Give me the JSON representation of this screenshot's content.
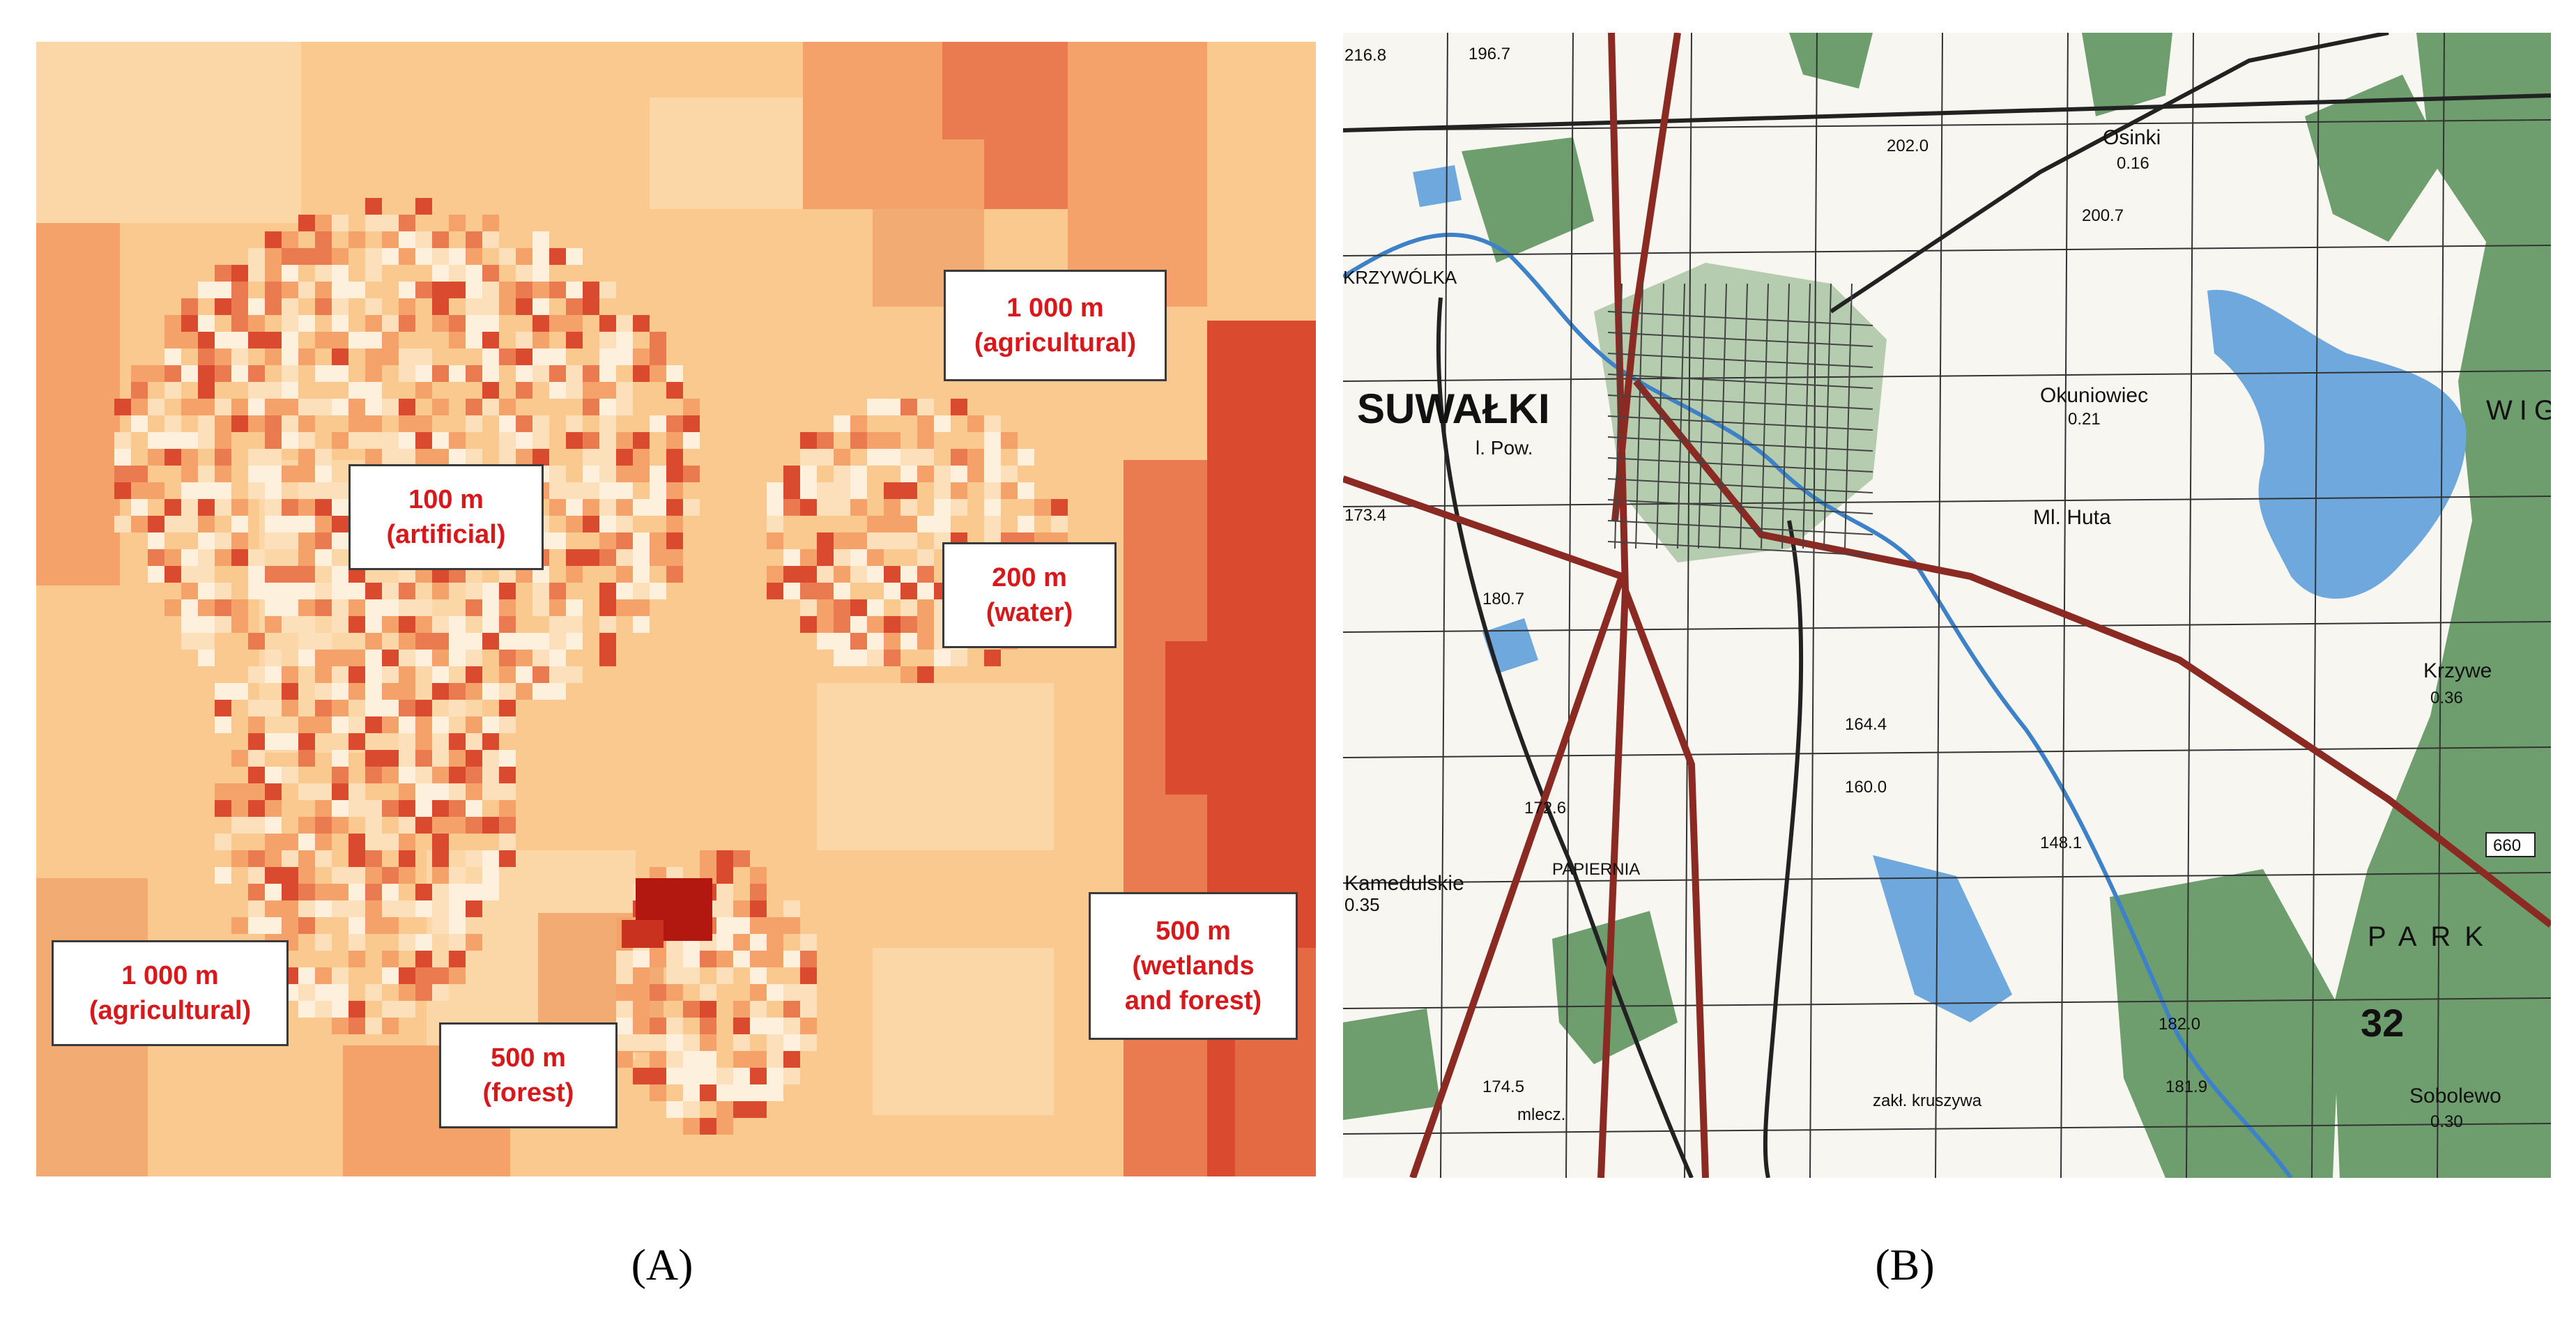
{
  "panel_a": {
    "caption": "(A)",
    "colors": {
      "base": "#f9c98f",
      "light": "#fbe0bb",
      "pale": "#fdf0dc",
      "medium": "#f4a26a",
      "strong": "#ea7a4f",
      "deep": "#d94a2f",
      "darkest": "#b2180f"
    },
    "labels": [
      {
        "name": "label-agricultural-ne",
        "distance": "1 000 m",
        "class": "(agricultural)"
      },
      {
        "name": "label-artificial",
        "distance": "100 m",
        "class": "(artificial)"
      },
      {
        "name": "label-water",
        "distance": "200 m",
        "class": "(water)"
      },
      {
        "name": "label-agricultural-sw",
        "distance": "1 000 m",
        "class": "(agricultural)"
      },
      {
        "name": "label-forest",
        "distance": "500 m",
        "class": "(forest)"
      },
      {
        "name": "label-wetlands",
        "distance": "500 m",
        "class": "(wetlands",
        "class2": "and forest)"
      }
    ]
  },
  "panel_b": {
    "caption": "(B)",
    "colors": {
      "forest": "#6e9e6e",
      "water": "#6fa8dc",
      "road": "#8b2a22",
      "rail": "#222222",
      "grid": "#333333"
    },
    "place_names": {
      "city": "SUWAŁKI",
      "city_sub": "l. Pow.",
      "krzywolka": "KRZYWÓLKA",
      "kamedulskie": "Kamedulskie",
      "papiernia": "PAPIERNIA",
      "osinki": "Osinki",
      "okuniowiec": "Okuniowiec",
      "ml_huta": "Ml. Huta",
      "krzywe": "Krzywe",
      "sobolewo": "Sobolewo",
      "park": "PARK",
      "wigry": "WIG",
      "kruszywa": "zakł. kruszywa",
      "mlecz": "mlecz."
    },
    "elevations": [
      "216.8",
      "196.7",
      "202.0",
      "200.7",
      "173.4",
      "180.7",
      "164.4",
      "160.0",
      "172.6",
      "174.5",
      "182.0",
      "181.9",
      "148.1",
      "0.35",
      "0.21",
      "0.36",
      "0.16",
      "0.30"
    ],
    "road_numbers": {
      "r660": "660",
      "r660b": "660",
      "sheet": "32"
    }
  }
}
